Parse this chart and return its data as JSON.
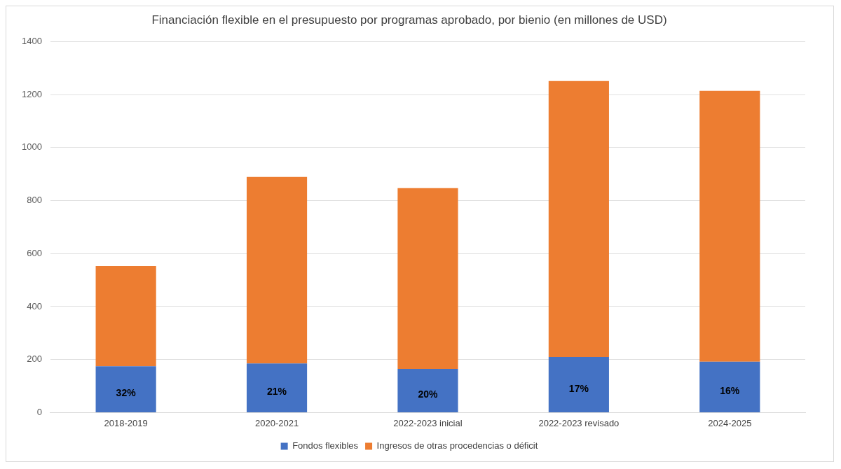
{
  "chart_data": {
    "type": "bar",
    "title": "Financiación flexible en el presupuesto por programas aprobado, por bienio (en millones de USD)",
    "categories": [
      "2018-2019",
      "2020-2021",
      "2022-2023 inicial",
      "2022-2023 revisado",
      "2024-2025"
    ],
    "series": [
      {
        "name": "Fondos flexibles",
        "color": "#4472c4",
        "values": [
          175,
          185,
          165,
          210,
          192
        ]
      },
      {
        "name": "Ingresos de otras procedencias o déficit",
        "color": "#ed7d31",
        "values": [
          378,
          704,
          682,
          1041,
          1022
        ]
      }
    ],
    "annotations": [
      {
        "text": "32%",
        "x": "2018-2019",
        "y": 175
      },
      {
        "text": "21%",
        "x": "2020-2021",
        "y": 185
      },
      {
        "text": "20%",
        "x": "2022-2023 inicial",
        "y": 165
      },
      {
        "text": "17%",
        "x": "2022-2023 revisado",
        "y": 210
      },
      {
        "text": "16%",
        "x": "2024-2025",
        "y": 192
      }
    ],
    "stacked": true,
    "ylim": [
      0,
      1400
    ],
    "yticks": [
      0,
      200,
      400,
      600,
      800,
      1000,
      1200,
      1400
    ],
    "grid": "y",
    "legend": "bottom"
  }
}
